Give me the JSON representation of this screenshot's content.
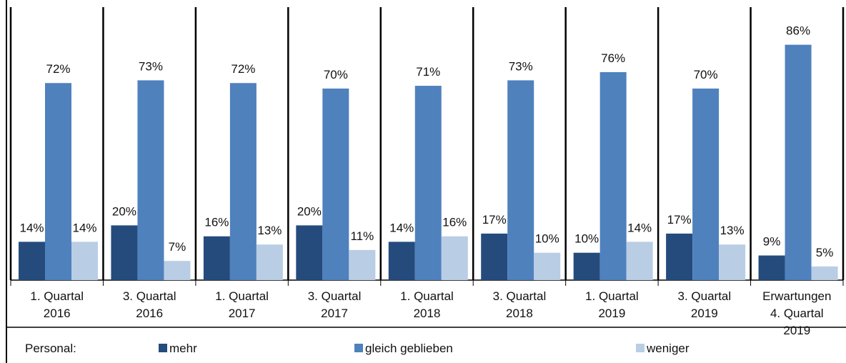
{
  "chart_data": {
    "type": "bar",
    "categories": [
      "1. Quartal\n2016",
      "3. Quartal\n2016",
      "1. Quartal\n2017",
      "3. Quartal\n2017",
      "1. Quartal\n2018",
      "3. Quartal\n2018",
      "1. Quartal\n2019",
      "3. Quartal\n2019",
      "Erwartungen\n4. Quartal\n2019"
    ],
    "legend_title": "Personal:",
    "series": [
      {
        "name": "mehr",
        "color": "#254b7d",
        "values": [
          14,
          20,
          16,
          20,
          14,
          17,
          10,
          17,
          9
        ],
        "value_labels": [
          "14%",
          "20%",
          "16%",
          "20%",
          "14%",
          "17%",
          "10%",
          "17%",
          "9%"
        ]
      },
      {
        "name": "gleich geblieben",
        "color": "#4f81bd",
        "values": [
          72,
          73,
          72,
          70,
          71,
          73,
          76,
          70,
          86
        ],
        "value_labels": [
          "72%",
          "73%",
          "72%",
          "70%",
          "71%",
          "73%",
          "76%",
          "70%",
          "86%"
        ]
      },
      {
        "name": "weniger",
        "color": "#b9cde5",
        "values": [
          14,
          7,
          13,
          11,
          16,
          10,
          14,
          13,
          5
        ],
        "value_labels": [
          "14%",
          "7%",
          "13%",
          "11%",
          "16%",
          "10%",
          "14%",
          "13%",
          "5%"
        ]
      }
    ],
    "ylim": [
      0,
      100
    ]
  }
}
